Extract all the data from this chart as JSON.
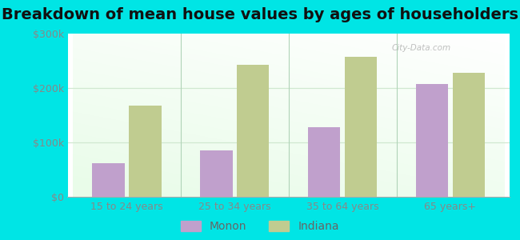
{
  "title": "Breakdown of mean house values by ages of householders",
  "categories": [
    "15 to 24 years",
    "25 to 34 years",
    "35 to 64 years",
    "65 years+"
  ],
  "monon_values": [
    62000,
    85000,
    128000,
    207000
  ],
  "indiana_values": [
    168000,
    242000,
    258000,
    228000
  ],
  "monon_color": "#c0a0cc",
  "indiana_color": "#c0cc90",
  "background_color": "#00e5e5",
  "plot_bg_topleft": "#d8eedc",
  "plot_bg_topright": "#f0f8f0",
  "plot_bg_bottomleft": "#c8e8d0",
  "ylim": [
    0,
    300000
  ],
  "yticks": [
    0,
    100000,
    200000,
    300000
  ],
  "ytick_labels": [
    "$0",
    "$100k",
    "$200k",
    "$300k"
  ],
  "legend_labels": [
    "Monon",
    "Indiana"
  ],
  "watermark": "City-Data.com",
  "title_fontsize": 14,
  "tick_fontsize": 9,
  "legend_fontsize": 10,
  "bar_width": 0.3,
  "axis_label_color": "#888888",
  "grid_color": "#d0e8d0",
  "separator_color": "#b0d4b8"
}
